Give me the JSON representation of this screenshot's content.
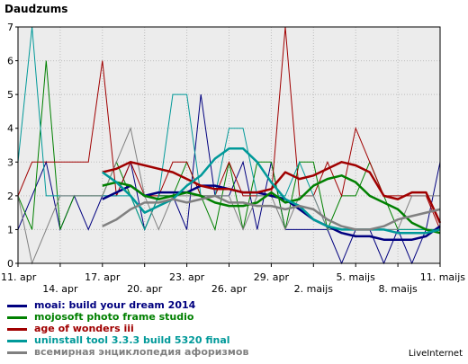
{
  "chart_data": {
    "type": "line",
    "ylabel": "Daudzums",
    "ylim": [
      0,
      7
    ],
    "y_ticks": [
      0,
      1,
      2,
      3,
      4,
      5,
      6,
      7
    ],
    "x_range": [
      0,
      30
    ],
    "x_ticks": [
      {
        "i": 0,
        "label": "11. apr"
      },
      {
        "i": 3,
        "label": "14. apr"
      },
      {
        "i": 6,
        "label": "17. apr"
      },
      {
        "i": 9,
        "label": "20. apr"
      },
      {
        "i": 12,
        "label": "23. apr"
      },
      {
        "i": 15,
        "label": "26. apr"
      },
      {
        "i": 18,
        "label": "29. apr"
      },
      {
        "i": 21,
        "label": "2. maijs"
      },
      {
        "i": 24,
        "label": "5. maijs"
      },
      {
        "i": 27,
        "label": "8. maijs"
      },
      {
        "i": 30,
        "label": "11. maijs"
      }
    ],
    "grid": true,
    "legend_position": "bottom",
    "series": [
      {
        "name": "moai: build your dream 2014",
        "color": "#00007f",
        "values": [
          1,
          2,
          3,
          1,
          2,
          1,
          2,
          2,
          3,
          1,
          2,
          2,
          1,
          5,
          2,
          2,
          3,
          1,
          3,
          1,
          1,
          1,
          1,
          0,
          1,
          1,
          0,
          1,
          0,
          1,
          3
        ],
        "trend": [
          null,
          null,
          null,
          null,
          null,
          null,
          1.9,
          2.1,
          2.3,
          2.0,
          2.1,
          2.1,
          2.1,
          2.3,
          2.3,
          2.2,
          2.1,
          2.1,
          2.0,
          1.9,
          1.6,
          1.3,
          1.1,
          0.9,
          0.8,
          0.8,
          0.7,
          0.7,
          0.7,
          0.8,
          1.1
        ]
      },
      {
        "name": "mojosoft photo frame studio",
        "color": "#008000",
        "values": [
          2,
          1,
          6,
          1,
          2,
          2,
          2,
          3,
          2,
          1,
          2,
          2,
          3,
          2,
          1,
          3,
          1,
          3,
          3,
          1,
          3,
          3,
          1,
          2,
          2,
          3,
          2,
          1,
          1,
          1,
          1
        ],
        "trend": [
          null,
          null,
          null,
          null,
          null,
          null,
          2.3,
          2.4,
          2.3,
          2.0,
          1.9,
          2.0,
          2.1,
          2.0,
          1.8,
          1.7,
          1.7,
          1.8,
          2.1,
          1.8,
          1.9,
          2.3,
          2.5,
          2.6,
          2.4,
          2.0,
          1.8,
          1.6,
          1.2,
          1.0,
          0.9
        ]
      },
      {
        "name": "age of wonders iii",
        "color": "#a00000",
        "values": [
          2,
          3,
          3,
          3,
          3,
          3,
          6,
          2,
          3,
          2,
          2,
          3,
          3,
          2,
          2,
          3,
          2,
          2,
          2,
          7,
          2,
          2,
          3,
          2,
          4,
          3,
          2,
          2,
          2,
          2,
          1
        ],
        "trend": [
          null,
          null,
          null,
          null,
          null,
          null,
          2.7,
          2.8,
          3.0,
          2.9,
          2.8,
          2.7,
          2.5,
          2.3,
          2.2,
          2.2,
          2.1,
          2.1,
          2.2,
          2.7,
          2.5,
          2.6,
          2.8,
          3.0,
          2.9,
          2.7,
          2.0,
          1.9,
          2.1,
          2.1,
          1.2
        ]
      },
      {
        "name": "uninstall tool 3.3.3 build 5320 final",
        "color": "#009999",
        "values": [
          3,
          7,
          2,
          2,
          2,
          2,
          2,
          2,
          2,
          1,
          2,
          5,
          5,
          2,
          2,
          4,
          4,
          2,
          2,
          2,
          3,
          2,
          1,
          1,
          1,
          1,
          1,
          1,
          1,
          1,
          1
        ],
        "trend": [
          null,
          null,
          null,
          null,
          null,
          null,
          2.7,
          2.4,
          2.0,
          1.5,
          1.7,
          1.9,
          2.3,
          2.6,
          3.1,
          3.4,
          3.4,
          3.0,
          2.4,
          1.9,
          1.7,
          1.3,
          1.1,
          1.0,
          1.0,
          1.0,
          1.0,
          0.9,
          0.9,
          0.9,
          1.0
        ]
      },
      {
        "name": "всемирная энциклопедия афоризмов",
        "color": "#808080",
        "values": [
          2,
          0,
          1,
          2,
          2,
          2,
          2,
          3,
          4,
          2,
          1,
          2,
          2,
          2,
          2,
          2,
          1,
          2,
          2,
          1,
          2,
          2,
          1,
          1,
          1,
          1,
          1,
          1,
          2,
          2,
          2
        ],
        "trend": [
          null,
          null,
          null,
          null,
          null,
          null,
          1.1,
          1.3,
          1.6,
          1.8,
          1.8,
          1.9,
          1.8,
          1.9,
          2.0,
          1.8,
          1.8,
          1.7,
          1.7,
          1.6,
          1.7,
          1.6,
          1.3,
          1.1,
          1.0,
          1.0,
          1.1,
          1.3,
          1.4,
          1.5,
          1.6
        ]
      }
    ]
  },
  "branding": "LiveInternet"
}
